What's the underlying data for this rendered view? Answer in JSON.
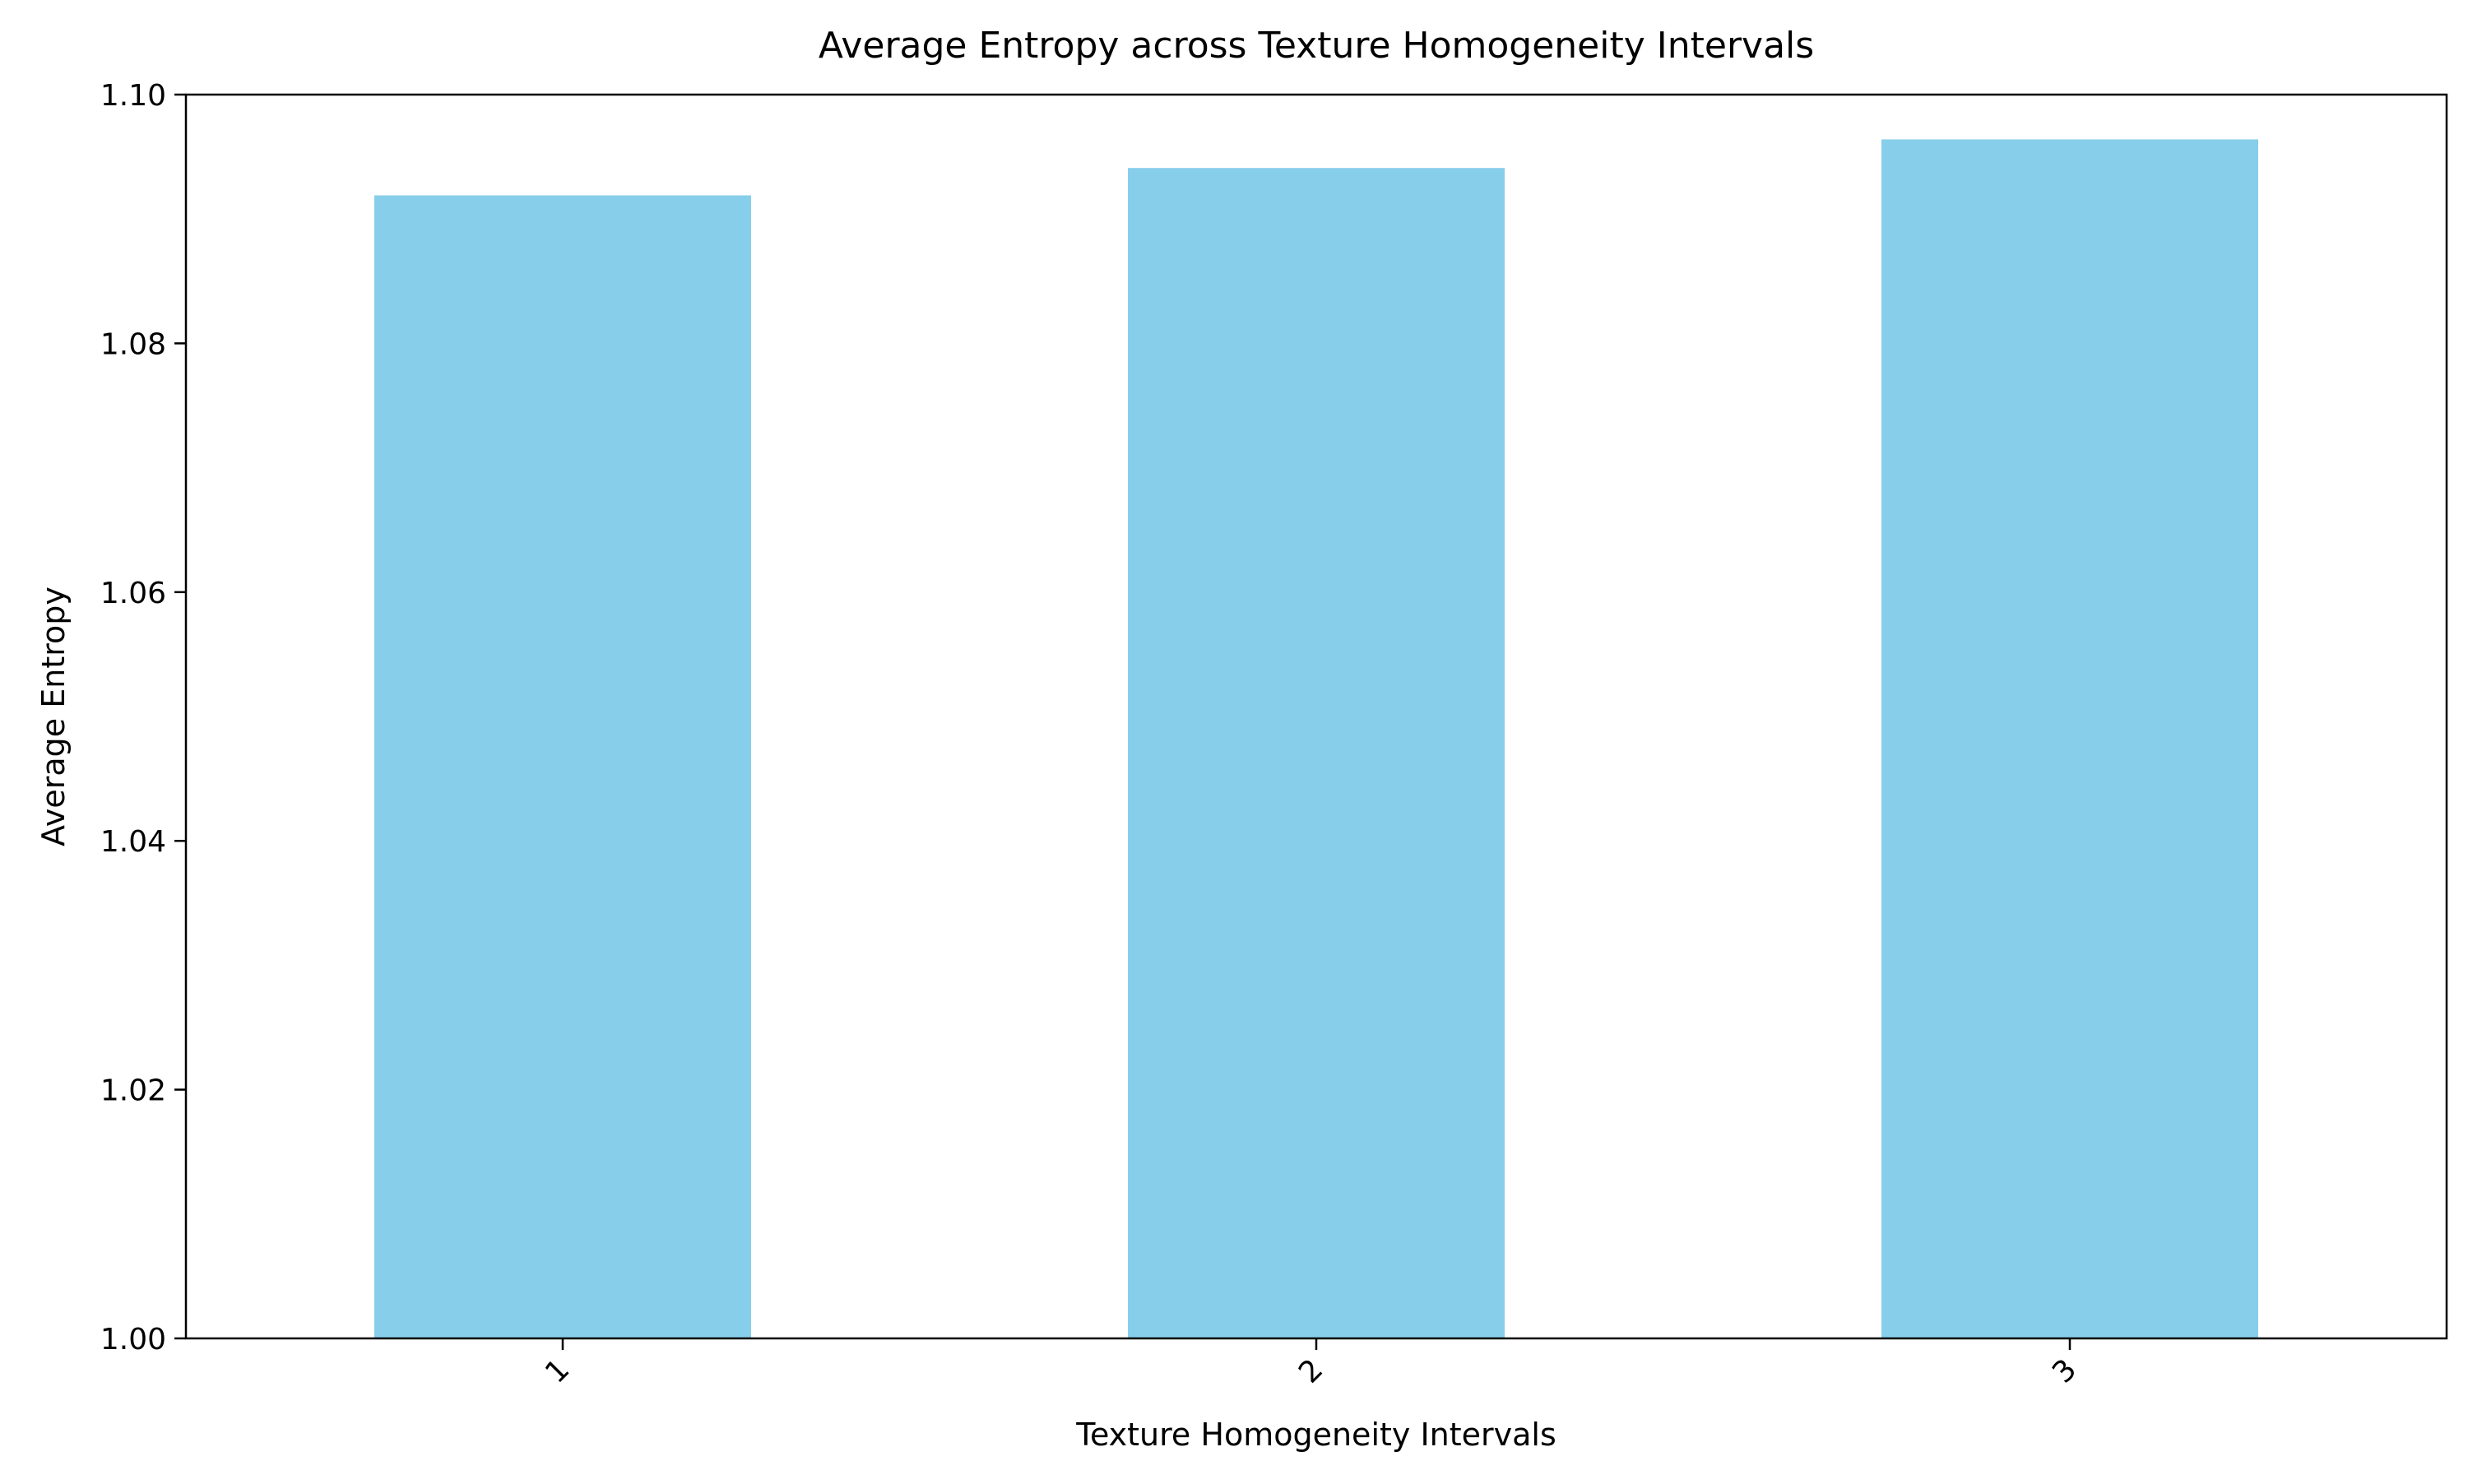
{
  "chart_data": {
    "type": "bar",
    "title": "Average Entropy across Texture Homogeneity Intervals",
    "xlabel": "Texture Homogeneity Intervals",
    "ylabel": "Average Entropy",
    "categories": [
      "1",
      "2",
      "3"
    ],
    "values": [
      1.0919,
      1.0941,
      1.0964
    ],
    "ylim": [
      1.0,
      1.1
    ],
    "yticks": [
      1.0,
      1.02,
      1.04,
      1.06,
      1.08,
      1.1
    ],
    "ytick_labels": [
      "1.00",
      "1.02",
      "1.04",
      "1.06",
      "1.08",
      "1.10"
    ],
    "xtick_rotation": 45,
    "bar_color": "#87CEEB",
    "grid": false,
    "legend": false
  }
}
